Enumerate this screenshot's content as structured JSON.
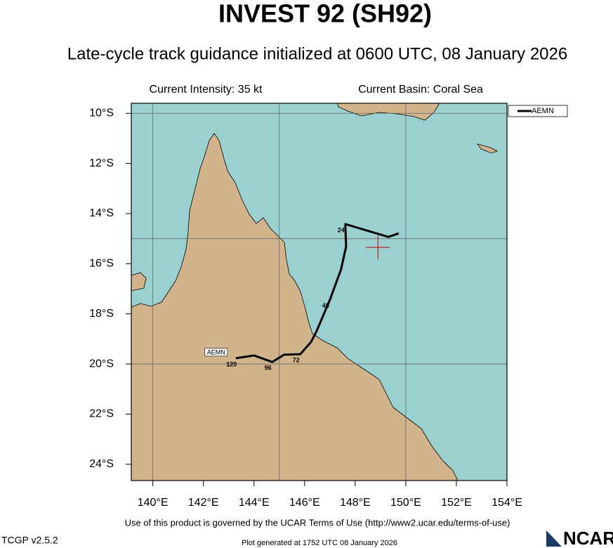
{
  "chart_data": {
    "type": "track-map",
    "title": "INVEST 92 (SH92)",
    "subtitle": "Late-cycle track guidance initialized at 0600 UTC, 08 January 2026",
    "intensity_text": "Current Intensity: 35 kt",
    "basin_text": "Current Basin: Coral Sea",
    "xlim": [
      139.15,
      154
    ],
    "ylim": [
      -24.65,
      -9.6
    ],
    "xticks": [
      {
        "value": 140,
        "label": "140°E"
      },
      {
        "value": 142,
        "label": "142°E"
      },
      {
        "value": 144,
        "label": "144°E"
      },
      {
        "value": 146,
        "label": "146°E"
      },
      {
        "value": 148,
        "label": "148°E"
      },
      {
        "value": 150,
        "label": "150°E"
      },
      {
        "value": 152,
        "label": "152°E"
      },
      {
        "value": 154,
        "label": "154°E"
      }
    ],
    "yticks": [
      {
        "value": -10,
        "label": "10°S"
      },
      {
        "value": -12,
        "label": "12°S"
      },
      {
        "value": -14,
        "label": "14°S"
      },
      {
        "value": -16,
        "label": "16°S"
      },
      {
        "value": -18,
        "label": "18°S"
      },
      {
        "value": -20,
        "label": "20°S"
      },
      {
        "value": -22,
        "label": "22°S"
      },
      {
        "value": -24,
        "label": "24°S"
      }
    ],
    "grid_x": [
      140,
      145,
      150
    ],
    "grid_y": [
      -10,
      -15,
      -20
    ],
    "legend": "upper right",
    "series": [
      {
        "name": "AEMN",
        "color": "#000000",
        "x": [
          149.72,
          149.31,
          147.61,
          147.64,
          147.44,
          147.0,
          146.47,
          146.25,
          145.83,
          145.19,
          144.72,
          144.0,
          143.28
        ],
        "values": [
          -14.79,
          -14.93,
          -14.42,
          -15.32,
          -16.23,
          -17.44,
          -18.7,
          -19.13,
          -19.61,
          -19.63,
          -19.92,
          -19.66,
          -19.77
        ],
        "taus": [
          null,
          null,
          24,
          null,
          null,
          48,
          null,
          null,
          72,
          null,
          96,
          null,
          120
        ]
      }
    ],
    "current_position": {
      "lon": 148.9,
      "lat": -15.35,
      "color": "#cc0000"
    },
    "footer": "Use of this product is governed by the UCAR Terms of Use (http://www2.ucar.edu/terms-of-use)",
    "version": "TCGP v2.5.2",
    "generated": "Plot generated at 1752 UTC   08 January 2026",
    "logo": "NCAR"
  }
}
